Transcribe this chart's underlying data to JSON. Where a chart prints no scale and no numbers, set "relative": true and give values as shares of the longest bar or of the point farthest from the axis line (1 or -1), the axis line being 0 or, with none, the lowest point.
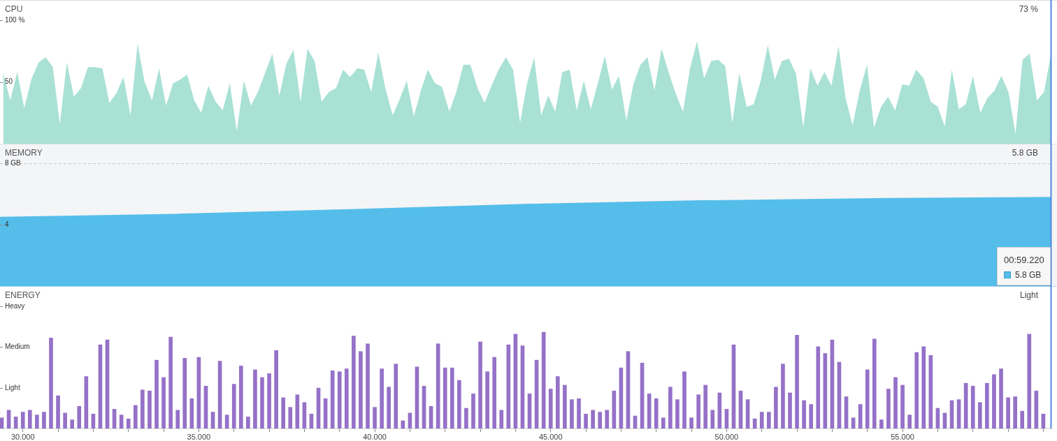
{
  "chart_data": [
    {
      "type": "area",
      "title": "CPU",
      "color": "#a9e1d5",
      "xlim": [
        29.35,
        59.25
      ],
      "ylim": [
        0,
        116.4
      ],
      "yticks": [
        {
          "value": 100,
          "label": "100 %"
        },
        50
      ],
      "tick_labels": "y",
      "annotations": [
        "73 %"
      ],
      "ref_lines": [
        {
          "axis": "x",
          "value": 59.22,
          "color": "#4f86e0"
        }
      ],
      "x": [
        29.44,
        29.64,
        29.84,
        30.04,
        30.24,
        30.45,
        30.65,
        30.85,
        31.05,
        31.25,
        31.45,
        31.65,
        31.85,
        32.06,
        32.26,
        32.46,
        32.66,
        32.86,
        33.06,
        33.26,
        33.46,
        33.67,
        33.87,
        34.07,
        34.27,
        34.47,
        34.67,
        34.87,
        35.07,
        35.27,
        35.48,
        35.68,
        35.88,
        36.08,
        36.28,
        36.48,
        36.68,
        36.88,
        37.09,
        37.29,
        37.49,
        37.69,
        37.89,
        38.09,
        38.29,
        38.49,
        38.7,
        38.9,
        39.1,
        39.3,
        39.5,
        39.7,
        39.9,
        40.1,
        40.3,
        40.51,
        40.71,
        40.91,
        41.11,
        41.31,
        41.51,
        41.71,
        41.91,
        42.12,
        42.32,
        42.52,
        42.72,
        42.92,
        43.12,
        43.32,
        43.52,
        43.73,
        43.93,
        44.13,
        44.33,
        44.53,
        44.73,
        44.93,
        45.13,
        45.33,
        45.54,
        45.74,
        45.94,
        46.14,
        46.34,
        46.54,
        46.74,
        46.94,
        47.15,
        47.35,
        47.55,
        47.75,
        47.95,
        48.15,
        48.35,
        48.55,
        48.76,
        48.96,
        49.16,
        49.36,
        49.56,
        49.76,
        49.96,
        50.16,
        50.36,
        50.57,
        50.77,
        50.97,
        51.17,
        51.37,
        51.57,
        51.77,
        51.97,
        52.18,
        52.38,
        52.58,
        52.78,
        52.98,
        53.18,
        53.38,
        53.58,
        53.79,
        53.99,
        54.19,
        54.39,
        54.59,
        54.79,
        54.99,
        55.19,
        55.39,
        55.6,
        55.8,
        56.0,
        56.2,
        56.4,
        56.6,
        56.8,
        57.0,
        57.21,
        57.41,
        57.61,
        57.81,
        58.01,
        58.21,
        58.41,
        58.61,
        58.82,
        59.02,
        59.22
      ],
      "values": [
        58,
        35,
        58,
        29,
        52,
        66,
        70,
        62,
        16,
        66,
        38,
        45,
        62,
        62,
        61,
        33,
        41,
        54,
        23,
        81,
        50,
        35,
        61,
        31,
        49,
        52,
        56,
        35,
        25,
        47,
        34,
        27,
        49,
        10,
        51,
        31,
        42,
        57,
        73,
        39,
        65,
        76,
        34,
        77,
        67,
        34,
        42,
        45,
        60,
        54,
        61,
        60,
        42,
        74,
        45,
        23,
        36,
        51,
        22,
        43,
        60,
        49,
        46,
        26,
        42,
        64,
        64,
        45,
        33,
        47,
        60,
        70,
        60,
        17,
        49,
        70,
        23,
        39,
        26,
        58,
        60,
        27,
        51,
        28,
        49,
        71,
        44,
        55,
        19,
        48,
        64,
        70,
        43,
        77,
        58,
        41,
        26,
        61,
        83,
        53,
        67,
        68,
        63,
        17,
        57,
        30,
        32,
        51,
        80,
        52,
        67,
        69,
        57,
        13,
        61,
        47,
        58,
        47,
        79,
        37,
        15,
        44,
        64,
        13,
        30,
        38,
        27,
        48,
        47,
        60,
        53,
        34,
        30,
        14,
        60,
        28,
        32,
        55,
        25,
        37,
        43,
        55,
        42,
        8,
        68,
        73,
        35,
        42,
        73
      ]
    },
    {
      "type": "area",
      "title": "MEMORY",
      "color": "#55bdea",
      "xlim": [
        29.35,
        59.25
      ],
      "ylim": [
        0,
        9.26
      ],
      "yticks": [
        {
          "value": 8,
          "label": "8 GB"
        },
        4
      ],
      "tick_labels": "y",
      "annotations": [
        "5.8 GB",
        "00:59.220",
        "5.8 GB"
      ],
      "ref_lines": [
        {
          "axis": "y",
          "value": 8,
          "color": "#c8c8c8",
          "line_style": "dashed"
        },
        {
          "axis": "x",
          "value": 59.22,
          "color": "#4f86e0"
        }
      ],
      "x": [
        29.35,
        34.32,
        39.28,
        44.25,
        49.22,
        54.19,
        59.22
      ],
      "values": [
        4.5,
        4.7,
        5.0,
        5.35,
        5.58,
        5.72,
        5.8
      ]
    },
    {
      "type": "bar",
      "title": "ENERGY",
      "color": "#9571c8",
      "relative": true,
      "xlim": [
        29.35,
        59.25
      ],
      "xticks": [
        {
          "value": 30,
          "label": "30.000"
        },
        {
          "value": 31,
          "label": null
        },
        {
          "value": 32,
          "label": null
        },
        {
          "value": 33,
          "label": null
        },
        {
          "value": 34,
          "label": null
        },
        {
          "value": 35,
          "label": "35.000"
        },
        {
          "value": 36,
          "label": null
        },
        {
          "value": 37,
          "label": null
        },
        {
          "value": 38,
          "label": null
        },
        {
          "value": 39,
          "label": null
        },
        {
          "value": 40,
          "label": "40.000"
        },
        {
          "value": 41,
          "label": null
        },
        {
          "value": 42,
          "label": null
        },
        {
          "value": 43,
          "label": null
        },
        {
          "value": 44,
          "label": null
        },
        {
          "value": 45,
          "label": "45.000"
        },
        {
          "value": 46,
          "label": null
        },
        {
          "value": 47,
          "label": null
        },
        {
          "value": 48,
          "label": null
        },
        {
          "value": 49,
          "label": null
        },
        {
          "value": 50,
          "label": "50.000"
        },
        {
          "value": 51,
          "label": null
        },
        {
          "value": 52,
          "label": null
        },
        {
          "value": 53,
          "label": null
        },
        {
          "value": 54,
          "label": null
        },
        {
          "value": 55,
          "label": "55.000"
        },
        {
          "value": 56,
          "label": null
        },
        {
          "value": 57,
          "label": null
        },
        {
          "value": 58,
          "label": null
        },
        {
          "value": 59,
          "label": null
        }
      ],
      "annotations": [
        "Light",
        "Heavy",
        "Medium",
        "Light"
      ],
      "ref_lines": [
        {
          "axis": "x",
          "value": 59.22,
          "color": "#4f86e0"
        }
      ],
      "x": [
        29.4,
        29.6,
        29.8,
        30,
        30.2,
        30.4,
        30.6,
        30.8,
        31,
        31.2,
        31.4,
        31.6,
        31.8,
        32,
        32.2,
        32.4,
        32.6,
        32.8,
        33,
        33.2,
        33.4,
        33.6,
        33.8,
        34,
        34.2,
        34.4,
        34.6,
        34.8,
        35,
        35.2,
        35.4,
        35.6,
        35.8,
        36,
        36.2,
        36.4,
        36.6,
        36.8,
        37,
        37.2,
        37.4,
        37.6,
        37.8,
        38,
        38.2,
        38.4,
        38.6,
        38.8,
        39,
        39.2,
        39.4,
        39.6,
        39.8,
        40,
        40.2,
        40.4,
        40.6,
        40.8,
        41,
        41.2,
        41.4,
        41.6,
        41.8,
        42,
        42.2,
        42.4,
        42.6,
        42.8,
        43,
        43.2,
        43.4,
        43.6,
        43.8,
        44,
        44.2,
        44.4,
        44.6,
        44.8,
        45,
        45.2,
        45.4,
        45.6,
        45.8,
        46,
        46.2,
        46.4,
        46.6,
        46.8,
        47,
        47.2,
        47.4,
        47.6,
        47.8,
        48,
        48.2,
        48.4,
        48.6,
        48.8,
        49,
        49.2,
        49.4,
        49.6,
        49.8,
        50,
        50.2,
        50.4,
        50.6,
        50.8,
        51,
        51.2,
        51.4,
        51.6,
        51.8,
        52,
        52.2,
        52.4,
        52.6,
        52.8,
        53,
        53.2,
        53.4,
        53.6,
        53.8,
        54,
        54.2,
        54.4,
        54.6,
        54.8,
        55,
        55.2,
        55.4,
        55.6,
        55.8,
        56,
        56.2,
        56.4,
        56.6,
        56.8,
        57,
        57.2,
        57.4,
        57.6,
        57.8,
        58,
        58.2,
        58.4,
        58.6,
        58.8,
        59
      ],
      "values": [
        0.11,
        0.19,
        0.12,
        0.17,
        0.19,
        0.14,
        0.17,
        0.94,
        0.34,
        0.16,
        0.09,
        0.23,
        0.54,
        0.15,
        0.87,
        0.92,
        0.2,
        0.14,
        0.1,
        0.24,
        0.4,
        0.39,
        0.71,
        0.53,
        0.95,
        0.19,
        0.73,
        0.31,
        0.74,
        0.44,
        0.17,
        0.7,
        0.14,
        0.46,
        0.65,
        0.12,
        0.61,
        0.53,
        0.57,
        0.81,
        0.32,
        0.22,
        0.35,
        0.27,
        0.15,
        0.42,
        0.31,
        0.6,
        0.59,
        0.62,
        0.96,
        0.8,
        0.88,
        0.22,
        0.62,
        0.43,
        0.67,
        0.08,
        0.16,
        0.64,
        0.44,
        0.23,
        0.88,
        0.63,
        0.63,
        0.5,
        0.21,
        0.36,
        0.9,
        0.59,
        0.74,
        0.19,
        0.87,
        0.98,
        0.86,
        0.36,
        0.71,
        1,
        0.41,
        0.54,
        0.45,
        0.3,
        0.31,
        0.15,
        0.19,
        0.17,
        0.19,
        0.39,
        0.63,
        0.8,
        0.13,
        0.68,
        0.36,
        0.31,
        0.11,
        0.43,
        0.3,
        0.59,
        0.11,
        0.35,
        0.45,
        0.19,
        0.37,
        0.2,
        0.87,
        0.39,
        0.3,
        0.1,
        0.17,
        0.17,
        0.43,
        0.67,
        0.37,
        0.97,
        0.29,
        0.25,
        0.85,
        0.78,
        0.92,
        0.69,
        0.33,
        0.11,
        0.25,
        0.61,
        0.93,
        0.09,
        0.41,
        0.53,
        0.45,
        0.14,
        0.79,
        0.85,
        0.76,
        0.21,
        0.16,
        0.29,
        0.3,
        0.47,
        0.44,
        0.27,
        0.47,
        0.56,
        0.62,
        0.32,
        0.33,
        0.18,
        0.98,
        0.39,
        0.15
      ]
    }
  ]
}
